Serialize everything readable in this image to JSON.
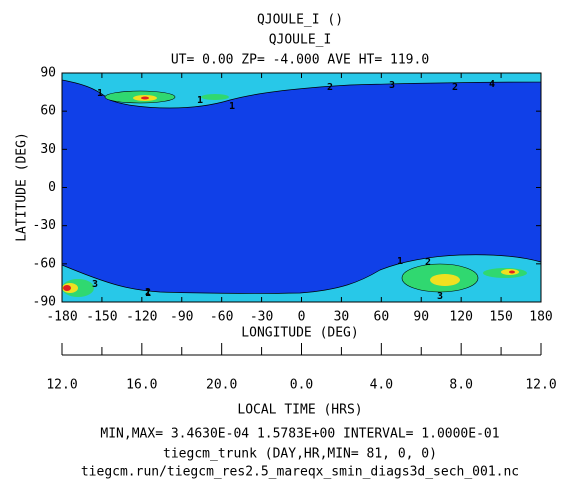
{
  "chart_data": {
    "type": "contour",
    "title": "QJOULE_I ()",
    "subtitle": "QJOULE_I",
    "header": "UT= 0.00 ZP= -4.000 AVE HT= 119.0",
    "xlabel": "LONGITUDE (DEG)",
    "ylabel": "LATITUDE (DEG)",
    "xlim": [
      -180,
      180
    ],
    "xticks": [
      -180,
      -150,
      -120,
      -90,
      -60,
      -30,
      0,
      30,
      60,
      90,
      120,
      150,
      180
    ],
    "ylim": [
      -90,
      90
    ],
    "yticks": [
      -90,
      -60,
      -30,
      0,
      30,
      60,
      90
    ],
    "x2label": "LOCAL TIME (HRS)",
    "x2lim": [
      12,
      36
    ],
    "x2ticks": [
      {
        "value": 12,
        "label": "12.0"
      },
      {
        "value": 16,
        "label": "16.0"
      },
      {
        "value": 20,
        "label": "20.0"
      },
      {
        "value": 24,
        "label": "0.0"
      },
      {
        "value": 28,
        "label": "4.0"
      },
      {
        "value": 32,
        "label": "8.0"
      },
      {
        "value": 36,
        "label": "12.0"
      }
    ],
    "x2minorticks": [
      14,
      18,
      22,
      26,
      30,
      34
    ],
    "contour_labels": [
      "1",
      "1",
      "1",
      "2",
      "3",
      "2",
      "4",
      "1",
      "2",
      "3",
      "1",
      "2",
      "3"
    ],
    "footer": [
      "MIN,MAX=  3.4630E-04  1.5783E+00 INTERVAL=  1.0000E-01",
      "tiegcm_trunk (DAY,HR,MIN= 81, 0, 0)",
      "tiegcm.run/tiegcm_res2.5_mareqx_smin_diags3d_sech_001.nc"
    ]
  }
}
